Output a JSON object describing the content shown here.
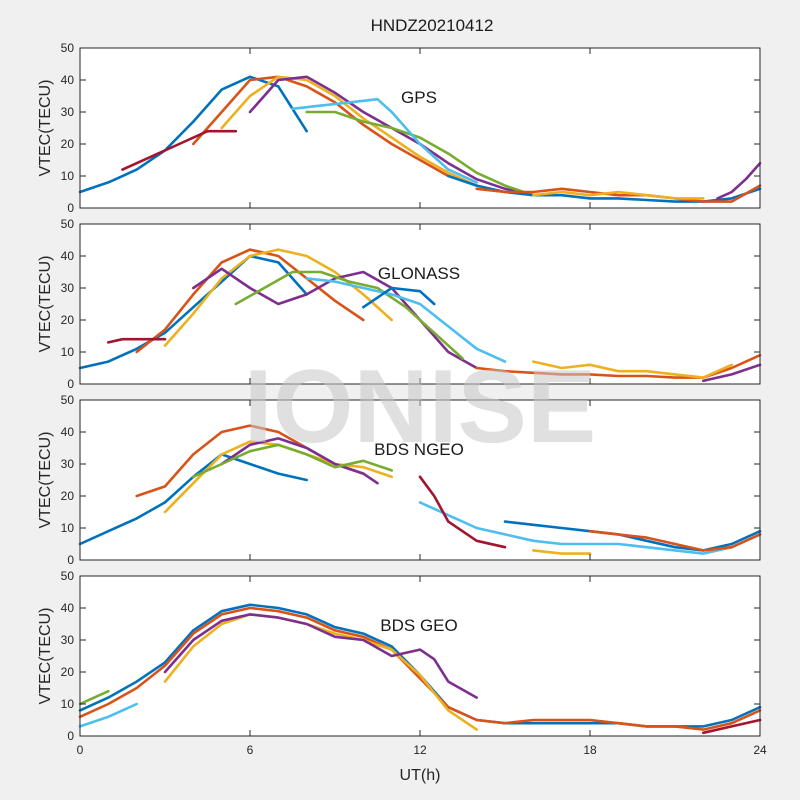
{
  "chart_data": {
    "type": "line",
    "title": "HNDZ20210412",
    "xlabel": "UT(h)",
    "xlim": [
      0,
      24
    ],
    "xticks": [
      0,
      6,
      12,
      18,
      24
    ],
    "watermark": "IONISE",
    "colors": [
      "#0072BD",
      "#D95319",
      "#EDB120",
      "#7E2F8E",
      "#77AC30",
      "#4DBEEE",
      "#A2142F"
    ],
    "panels": [
      {
        "label": "GPS",
        "ylabel": "VTEC(TECU)",
        "ylim": [
          0,
          50
        ],
        "yticks": [
          0,
          10,
          20,
          30,
          40,
          50
        ],
        "series": [
          {
            "x": [
              0,
              1,
              2,
              3,
              4,
              5,
              6,
              7,
              8
            ],
            "y": [
              5,
              8,
              12,
              18,
              27,
              37,
              41,
              38,
              24
            ]
          },
          {
            "x": [
              4,
              5,
              6,
              7,
              8,
              9,
              10,
              11,
              12,
              13
            ],
            "y": [
              20,
              30,
              40,
              41,
              38,
              33,
              26,
              20,
              15,
              10
            ]
          },
          {
            "x": [
              5,
              6,
              7,
              8,
              9,
              10,
              11,
              12,
              13,
              14
            ],
            "y": [
              25,
              35,
              41,
              40,
              35,
              28,
              22,
              16,
              11,
              7
            ]
          },
          {
            "x": [
              6,
              7,
              8,
              9,
              10,
              11,
              12,
              13,
              14,
              15,
              16
            ],
            "y": [
              30,
              40,
              41,
              36,
              30,
              25,
              20,
              14,
              9,
              6,
              4
            ]
          },
          {
            "x": [
              8,
              9,
              10,
              11,
              12,
              13,
              14,
              15,
              16
            ],
            "y": [
              30,
              30,
              27,
              25,
              22,
              17,
              11,
              7,
              4
            ]
          },
          {
            "x": [
              7.5,
              8.5,
              9.5,
              10.5,
              11,
              12,
              13,
              14
            ],
            "y": [
              31,
              32,
              33,
              34,
              30,
              20,
              12,
              8
            ]
          },
          {
            "x": [
              1.5,
              2.5,
              3.5,
              4.5,
              5.5
            ],
            "y": [
              12,
              16,
              20,
              24,
              24
            ]
          },
          {
            "x": [
              13,
              14,
              15,
              16,
              17,
              18,
              19,
              20,
              21,
              22,
              23,
              24
            ],
            "y": [
              10,
              7,
              5,
              4,
              4,
              3,
              3,
              2.5,
              2,
              2,
              3,
              6
            ]
          },
          {
            "x": [
              14,
              15,
              16,
              17,
              18,
              19,
              20,
              21,
              22,
              23,
              24
            ],
            "y": [
              6,
              5,
              5,
              6,
              5,
              4,
              4,
              3,
              2,
              2,
              7
            ]
          },
          {
            "x": [
              16,
              17,
              18,
              19,
              20,
              21,
              22
            ],
            "y": [
              4,
              5,
              4,
              5,
              4,
              3,
              3
            ]
          },
          {
            "x": [
              22.5,
              23,
              23.5,
              24
            ],
            "y": [
              3,
              5,
              9,
              14
            ]
          }
        ]
      },
      {
        "label": "GLONASS",
        "ylabel": "VTEC(TECU)",
        "ylim": [
          0,
          50
        ],
        "yticks": [
          0,
          10,
          20,
          30,
          40,
          50
        ],
        "series": [
          {
            "x": [
              0,
              1,
              2,
              3,
              4,
              5,
              6,
              7,
              8
            ],
            "y": [
              5,
              7,
              11,
              16,
              24,
              32,
              40,
              38,
              28
            ]
          },
          {
            "x": [
              2,
              3,
              4,
              5,
              6,
              7,
              8,
              9,
              10
            ],
            "y": [
              10,
              17,
              28,
              38,
              42,
              40,
              33,
              26,
              20
            ]
          },
          {
            "x": [
              3,
              4,
              5,
              6,
              7,
              8,
              9,
              10,
              11
            ],
            "y": [
              12,
              22,
              33,
              40,
              42,
              40,
              35,
              28,
              20
            ]
          },
          {
            "x": [
              4,
              5,
              6,
              7,
              8,
              9,
              10,
              11,
              12,
              13,
              14
            ],
            "y": [
              30,
              36,
              30,
              25,
              28,
              33,
              35,
              30,
              20,
              10,
              5
            ]
          },
          {
            "x": [
              5.5,
              6.5,
              7.5,
              8.5,
              9.5,
              10.5,
              11.5,
              12.5,
              13.5
            ],
            "y": [
              25,
              30,
              35,
              35,
              32,
              30,
              24,
              16,
              8
            ]
          },
          {
            "x": [
              8,
              9,
              10,
              11,
              12,
              13,
              14,
              15
            ],
            "y": [
              33,
              32,
              30,
              28,
              25,
              18,
              11,
              7
            ]
          },
          {
            "x": [
              1,
              1.5,
              2,
              3
            ],
            "y": [
              13,
              14,
              14,
              14
            ]
          },
          {
            "x": [
              10,
              11,
              12,
              12.5
            ],
            "y": [
              24,
              30,
              29,
              25
            ]
          },
          {
            "x": [
              14,
              15,
              16,
              17,
              18,
              19,
              20,
              21,
              22,
              23,
              24
            ],
            "y": [
              5,
              4,
              3.5,
              3,
              3,
              2.5,
              2.5,
              2,
              2,
              5,
              9
            ]
          },
          {
            "x": [
              16,
              17,
              18,
              19,
              20,
              21,
              22,
              23
            ],
            "y": [
              7,
              5,
              6,
              4,
              4,
              3,
              2,
              6
            ]
          },
          {
            "x": [
              22,
              23,
              24
            ],
            "y": [
              1,
              3,
              6
            ]
          }
        ]
      },
      {
        "label": "BDS NGEO",
        "ylabel": "VTEC(TECU)",
        "ylim": [
          0,
          50
        ],
        "yticks": [
          0,
          10,
          20,
          30,
          40,
          50
        ],
        "series": [
          {
            "x": [
              0,
              1,
              2,
              3,
              4,
              5,
              6,
              7,
              8
            ],
            "y": [
              5,
              9,
              13,
              18,
              26,
              33,
              30,
              27,
              25
            ]
          },
          {
            "x": [
              2,
              3,
              4,
              5,
              6,
              7,
              8,
              9,
              10
            ],
            "y": [
              20,
              23,
              33,
              40,
              42,
              40,
              35,
              30,
              27
            ]
          },
          {
            "x": [
              3,
              4,
              5,
              6,
              7,
              8,
              9,
              10,
              11
            ],
            "y": [
              15,
              24,
              33,
              37,
              36,
              33,
              30,
              29,
              26
            ]
          },
          {
            "x": [
              5,
              6,
              7,
              8,
              9,
              10,
              10.5
            ],
            "y": [
              30,
              36,
              38,
              35,
              30,
              27,
              24
            ]
          },
          {
            "x": [
              4,
              5,
              6,
              7,
              8,
              9,
              10,
              11
            ],
            "y": [
              26,
              30,
              34,
              36,
              33,
              29,
              31,
              28
            ]
          },
          {
            "x": [
              12,
              13,
              14,
              15,
              16,
              17,
              18,
              19,
              20,
              21,
              22,
              23,
              24
            ],
            "y": [
              18,
              14,
              10,
              8,
              6,
              5,
              5,
              5,
              4,
              3,
              2,
              4,
              8
            ]
          },
          {
            "x": [
              12,
              12.5,
              13,
              14,
              15
            ],
            "y": [
              26,
              20,
              12,
              6,
              4
            ]
          },
          {
            "x": [
              15,
              16,
              17,
              18,
              19,
              20,
              21,
              22,
              23,
              24
            ],
            "y": [
              12,
              11,
              10,
              9,
              8,
              6,
              4,
              3,
              5,
              9
            ]
          },
          {
            "x": [
              18,
              19,
              20,
              21,
              22,
              23,
              24
            ],
            "y": [
              9,
              8,
              7,
              5,
              3,
              4,
              8
            ]
          },
          {
            "x": [
              16,
              17,
              18
            ],
            "y": [
              3,
              2,
              2
            ]
          }
        ]
      },
      {
        "label": "BDS GEO",
        "ylabel": "VTEC(TECU)",
        "ylim": [
          0,
          50
        ],
        "yticks": [
          0,
          10,
          20,
          30,
          40,
          50
        ],
        "series": [
          {
            "x": [
              0,
              1,
              2,
              3,
              4,
              5,
              6,
              7,
              8,
              9,
              10,
              11,
              12,
              13,
              14,
              15,
              16,
              17,
              18,
              19,
              20,
              21,
              22,
              23,
              24
            ],
            "y": [
              8,
              12,
              17,
              23,
              33,
              39,
              41,
              40,
              38,
              34,
              32,
              28,
              19,
              9,
              5,
              4,
              4,
              4,
              4,
              4,
              3,
              3,
              3,
              5,
              9
            ]
          },
          {
            "x": [
              0,
              1,
              2,
              3,
              4,
              5,
              6,
              7,
              8,
              9,
              10,
              11,
              12,
              13,
              14,
              15,
              16,
              17,
              18,
              19,
              20,
              21,
              22,
              23,
              24
            ],
            "y": [
              6,
              10,
              15,
              22,
              32,
              38,
              40,
              39,
              37,
              33,
              31,
              27,
              18,
              9,
              5,
              4,
              5,
              5,
              5,
              4,
              3,
              3,
              2,
              4,
              8
            ]
          },
          {
            "x": [
              3,
              4,
              5,
              6,
              7,
              8,
              9,
              10,
              11,
              12,
              13,
              14
            ],
            "y": [
              17,
              28,
              35,
              38,
              37,
              35,
              32,
              30,
              27,
              19,
              8,
              2
            ]
          },
          {
            "x": [
              3,
              4,
              5,
              6,
              7,
              8,
              9,
              10,
              11,
              12,
              12.5,
              13,
              14
            ],
            "y": [
              20,
              30,
              36,
              38,
              37,
              35,
              31,
              30,
              25,
              27,
              24,
              17,
              12
            ]
          },
          {
            "x": [
              0,
              0.5,
              1
            ],
            "y": [
              10,
              12,
              14
            ]
          },
          {
            "x": [
              0,
              1,
              2
            ],
            "y": [
              3,
              6,
              10
            ]
          },
          {
            "x": [
              22,
              23,
              24
            ],
            "y": [
              1,
              3,
              5
            ]
          }
        ]
      }
    ]
  }
}
